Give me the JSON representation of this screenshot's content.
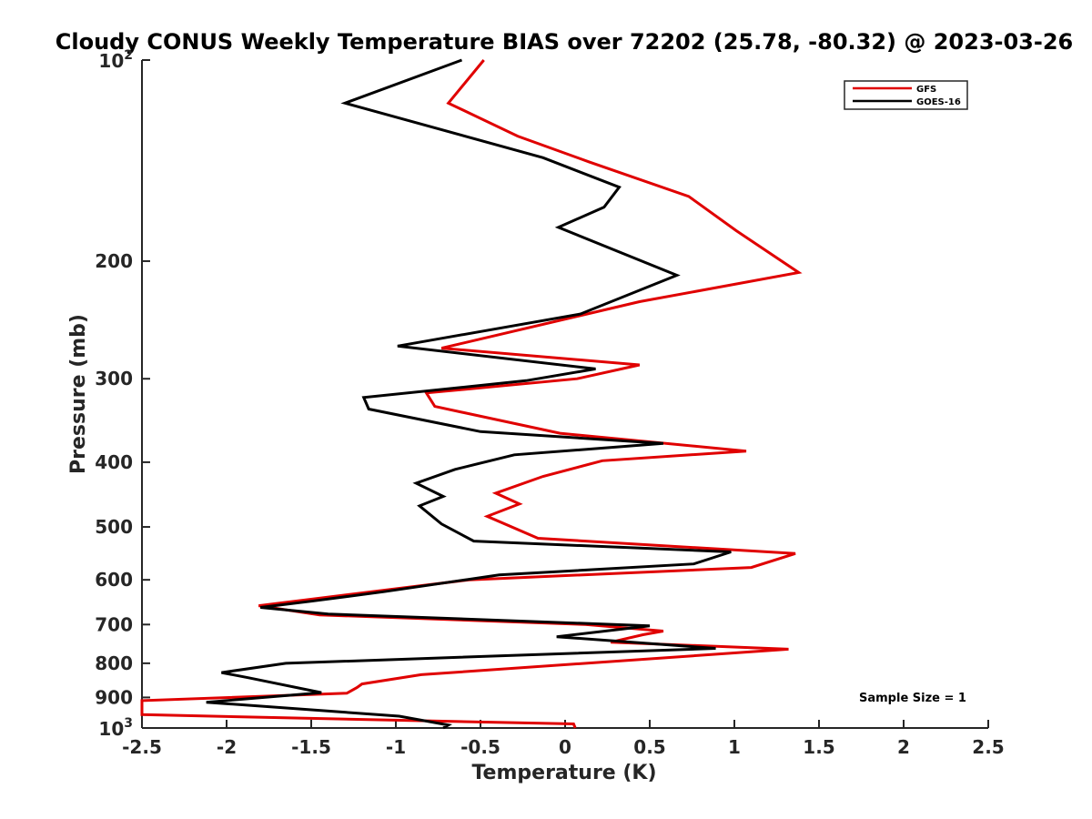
{
  "chart_data": {
    "type": "line",
    "title": "Cloudy CONUS Weekly Temperature BIAS over 72202 (25.78, -80.32) @ 2023-03-26",
    "xlabel": "Temperature (K)",
    "ylabel": "Pressure (mb)",
    "xlim": [
      -2.5,
      2.5
    ],
    "ylim": [
      100,
      1000
    ],
    "y_scale": "log",
    "y_reversed": true,
    "grid": false,
    "legend_position": "top-right",
    "x_ticks": [
      "-2.5",
      "-2",
      "-1.5",
      "-1",
      "-0.5",
      "0",
      "0.5",
      "1",
      "1.5",
      "2",
      "2.5"
    ],
    "y_ticks": [
      {
        "value": 100,
        "base": "10",
        "exp": "2"
      },
      {
        "value": 200,
        "label": "200"
      },
      {
        "value": 300,
        "label": "300"
      },
      {
        "value": 400,
        "label": "400"
      },
      {
        "value": 500,
        "label": "500"
      },
      {
        "value": 600,
        "label": "600"
      },
      {
        "value": 700,
        "label": "700"
      },
      {
        "value": 800,
        "label": "800"
      },
      {
        "value": 900,
        "label": "900"
      },
      {
        "value": 1000,
        "base": "10",
        "exp": "3"
      }
    ],
    "annotation": "Sample Size = 1",
    "series": [
      {
        "name": "GFS",
        "color": "#e00000",
        "points": [
          [
            -0.48,
            100
          ],
          [
            -0.69,
            116
          ],
          [
            -0.28,
            130
          ],
          [
            0.14,
            142
          ],
          [
            0.73,
            160
          ],
          [
            1.01,
            180
          ],
          [
            1.38,
            208
          ],
          [
            0.44,
            230
          ],
          [
            -0.73,
            270
          ],
          [
            0.44,
            286
          ],
          [
            0.07,
            300
          ],
          [
            -0.82,
            315
          ],
          [
            -0.77,
            330
          ],
          [
            -0.03,
            362
          ],
          [
            1.07,
            385
          ],
          [
            0.22,
            398
          ],
          [
            -0.13,
            420
          ],
          [
            -0.41,
            445
          ],
          [
            -0.27,
            462
          ],
          [
            -0.46,
            482
          ],
          [
            -0.16,
            520
          ],
          [
            1.36,
            548
          ],
          [
            1.1,
            575
          ],
          [
            -0.57,
            600
          ],
          [
            -1.81,
            656
          ],
          [
            -1.45,
            677
          ],
          [
            0.12,
            700
          ],
          [
            0.58,
            716
          ],
          [
            0.46,
            725
          ],
          [
            0.27,
            744
          ],
          [
            1.32,
            762
          ],
          [
            -0.85,
            832
          ],
          [
            -1.2,
            859
          ],
          [
            -1.23,
            870
          ],
          [
            -1.29,
            887
          ],
          [
            -2.5,
            910
          ],
          [
            -2.5,
            955
          ],
          [
            -0.63,
            978
          ],
          [
            0.05,
            986
          ],
          [
            0.06,
            1000
          ]
        ]
      },
      {
        "name": "GOES-16",
        "color": "#000000",
        "points": [
          [
            -0.61,
            100
          ],
          [
            -1.3,
            116
          ],
          [
            -0.13,
            140
          ],
          [
            0.32,
            155
          ],
          [
            0.23,
            166
          ],
          [
            -0.04,
            178
          ],
          [
            0.66,
            210
          ],
          [
            0.09,
            240
          ],
          [
            -0.99,
            268
          ],
          [
            0.18,
            290
          ],
          [
            -0.23,
            302
          ],
          [
            -1.19,
            320
          ],
          [
            -1.16,
            333
          ],
          [
            -0.5,
            360
          ],
          [
            0.58,
            375
          ],
          [
            -0.3,
            390
          ],
          [
            -0.65,
            410
          ],
          [
            -0.88,
            430
          ],
          [
            -0.72,
            450
          ],
          [
            -0.86,
            465
          ],
          [
            -0.73,
            495
          ],
          [
            -0.54,
            525
          ],
          [
            0.98,
            545
          ],
          [
            0.76,
            568
          ],
          [
            -0.39,
            590
          ],
          [
            -1.07,
            625
          ],
          [
            -1.5,
            646
          ],
          [
            -1.8,
            660
          ],
          [
            -1.4,
            675
          ],
          [
            0.5,
            703
          ],
          [
            -0.05,
            730
          ],
          [
            0.89,
            760
          ],
          [
            -1.65,
            800
          ],
          [
            -2.03,
            826
          ],
          [
            -1.87,
            841
          ],
          [
            -1.44,
            885
          ],
          [
            -2.12,
            915
          ],
          [
            -0.98,
            960
          ],
          [
            -0.69,
            990
          ],
          [
            -0.72,
            1000
          ]
        ]
      }
    ]
  }
}
